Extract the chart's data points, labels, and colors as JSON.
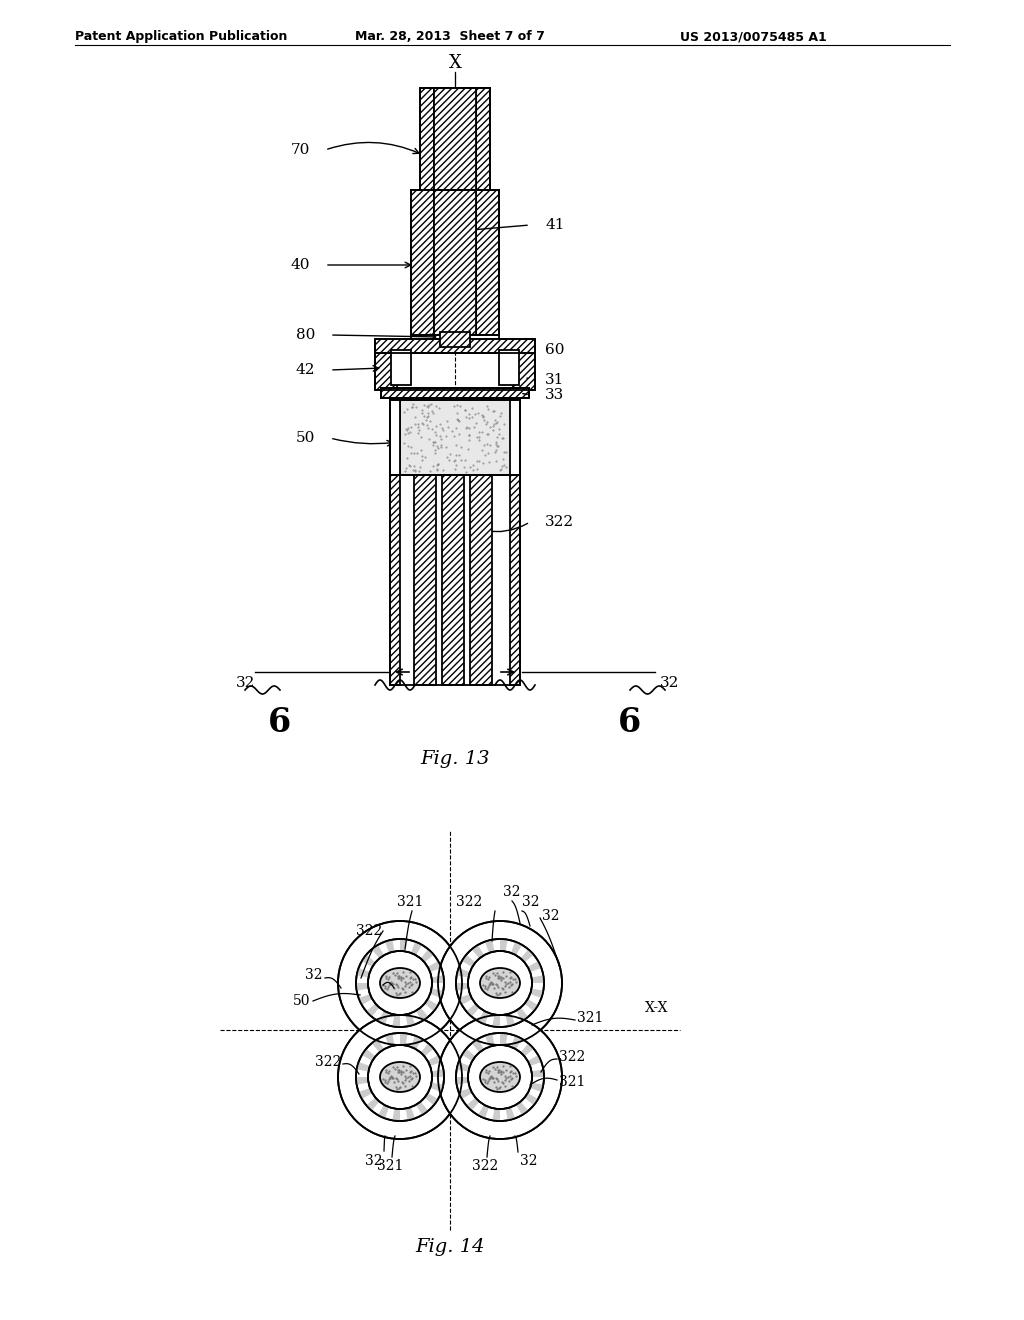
{
  "bg_color": "#ffffff",
  "line_color": "#000000",
  "header_left": "Patent Application Publication",
  "header_mid": "Mar. 28, 2013  Sheet 7 of 7",
  "header_right": "US 2013/0075485 A1",
  "fig13_label": "Fig. 13",
  "fig14_label": "Fig. 14"
}
